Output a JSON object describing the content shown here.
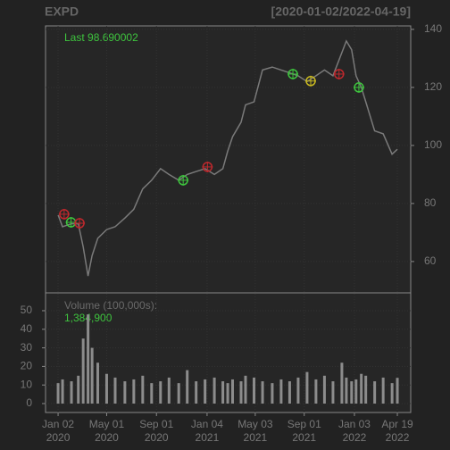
{
  "chart_data": {
    "type": "line",
    "title": "EXPD",
    "subtitle": "[2020-01-02/2022-04-19]",
    "last_label": "Last 98.690002",
    "volume_title": "Volume (100,000s):",
    "volume_last": "1,384,900",
    "x": [
      "2020-01-02",
      "2020-01-13",
      "2020-02-04",
      "2020-02-21",
      "2020-03-04",
      "2020-03-16",
      "2020-03-26",
      "2020-04-09",
      "2020-05-01",
      "2020-05-22",
      "2020-06-15",
      "2020-07-07",
      "2020-07-29",
      "2020-08-20",
      "2020-09-11",
      "2020-10-02",
      "2020-10-26",
      "2020-11-16",
      "2020-12-08",
      "2020-12-30",
      "2021-01-22",
      "2021-02-12",
      "2021-02-24",
      "2021-03-08",
      "2021-03-29",
      "2021-04-09",
      "2021-04-30",
      "2021-05-21",
      "2021-06-14",
      "2021-07-06",
      "2021-07-27",
      "2021-08-17",
      "2021-09-08",
      "2021-09-30",
      "2021-10-21",
      "2021-11-11",
      "2021-12-03",
      "2021-12-14",
      "2021-12-27",
      "2022-01-07",
      "2022-01-20",
      "2022-01-31",
      "2022-02-22",
      "2022-03-15",
      "2022-04-06",
      "2022-04-19"
    ],
    "series": [
      {
        "name": "EXPD",
        "color": "#7a7a7a",
        "values": [
          76,
          72,
          73,
          73,
          65,
          55,
          62,
          68,
          71,
          72,
          75,
          78,
          85,
          88,
          92,
          90,
          88,
          90,
          91,
          92,
          90,
          92,
          98,
          103,
          108,
          114,
          115,
          126,
          127,
          126,
          125,
          124,
          122,
          124,
          126,
          124,
          132,
          136,
          133,
          124,
          120,
          115,
          105,
          104,
          97,
          98.690002
        ]
      },
      {
        "name": "Volume",
        "color": "#8c8c8c",
        "axis": "y2",
        "values": [
          11,
          13,
          12,
          15,
          35,
          48,
          30,
          22,
          16,
          14,
          12,
          13,
          15,
          11,
          12,
          14,
          11,
          18,
          12,
          13,
          14,
          12,
          11,
          13,
          12,
          15,
          14,
          12,
          11,
          13,
          12,
          14,
          17,
          13,
          15,
          12,
          22,
          14,
          12,
          13,
          16,
          15,
          12,
          14,
          11,
          13.849
        ]
      }
    ],
    "markers": [
      {
        "x": "2020-01-17",
        "value": 76.3,
        "color": "#c0282d"
      },
      {
        "x": "2020-02-03",
        "value": 73.5,
        "color": "#3ec43e"
      },
      {
        "x": "2020-02-24",
        "value": 73.2,
        "color": "#c0282d"
      },
      {
        "x": "2020-11-06",
        "value": 88,
        "color": "#3ec43e"
      },
      {
        "x": "2021-01-05",
        "value": 92.6,
        "color": "#c0282d"
      },
      {
        "x": "2021-08-04",
        "value": 124.6,
        "color": "#3ec43e"
      },
      {
        "x": "2021-09-17",
        "value": 122.2,
        "color": "#c8b820"
      },
      {
        "x": "2021-11-26",
        "value": 124.6,
        "color": "#c0282d"
      },
      {
        "x": "2022-01-14",
        "value": 120,
        "color": "#3ec43e"
      }
    ],
    "xlim": [
      "2019-12-02",
      "2022-05-22"
    ],
    "xticks": [
      {
        "value": "2020-01-02",
        "label": "Jan 02\n2020"
      },
      {
        "value": "2020-05-01",
        "label": "May 01\n2020"
      },
      {
        "value": "2020-09-01",
        "label": "Sep 01\n2020"
      },
      {
        "value": "2021-01-04",
        "label": "Jan 04\n2021"
      },
      {
        "value": "2021-05-03",
        "label": "May 03\n2021"
      },
      {
        "value": "2021-09-01",
        "label": "Sep 01\n2021"
      },
      {
        "value": "2022-01-03",
        "label": "Jan 03\n2022"
      },
      {
        "value": "2022-04-19",
        "label": "Apr 19\n2022"
      }
    ],
    "ylim": [
      49.2,
      141.2
    ],
    "yticks": [
      60,
      80,
      100,
      120,
      140
    ],
    "y2lim": [
      -4.8,
      59.6
    ],
    "y2ticks": [
      0,
      10,
      20,
      30,
      40,
      50
    ],
    "grid": true
  }
}
